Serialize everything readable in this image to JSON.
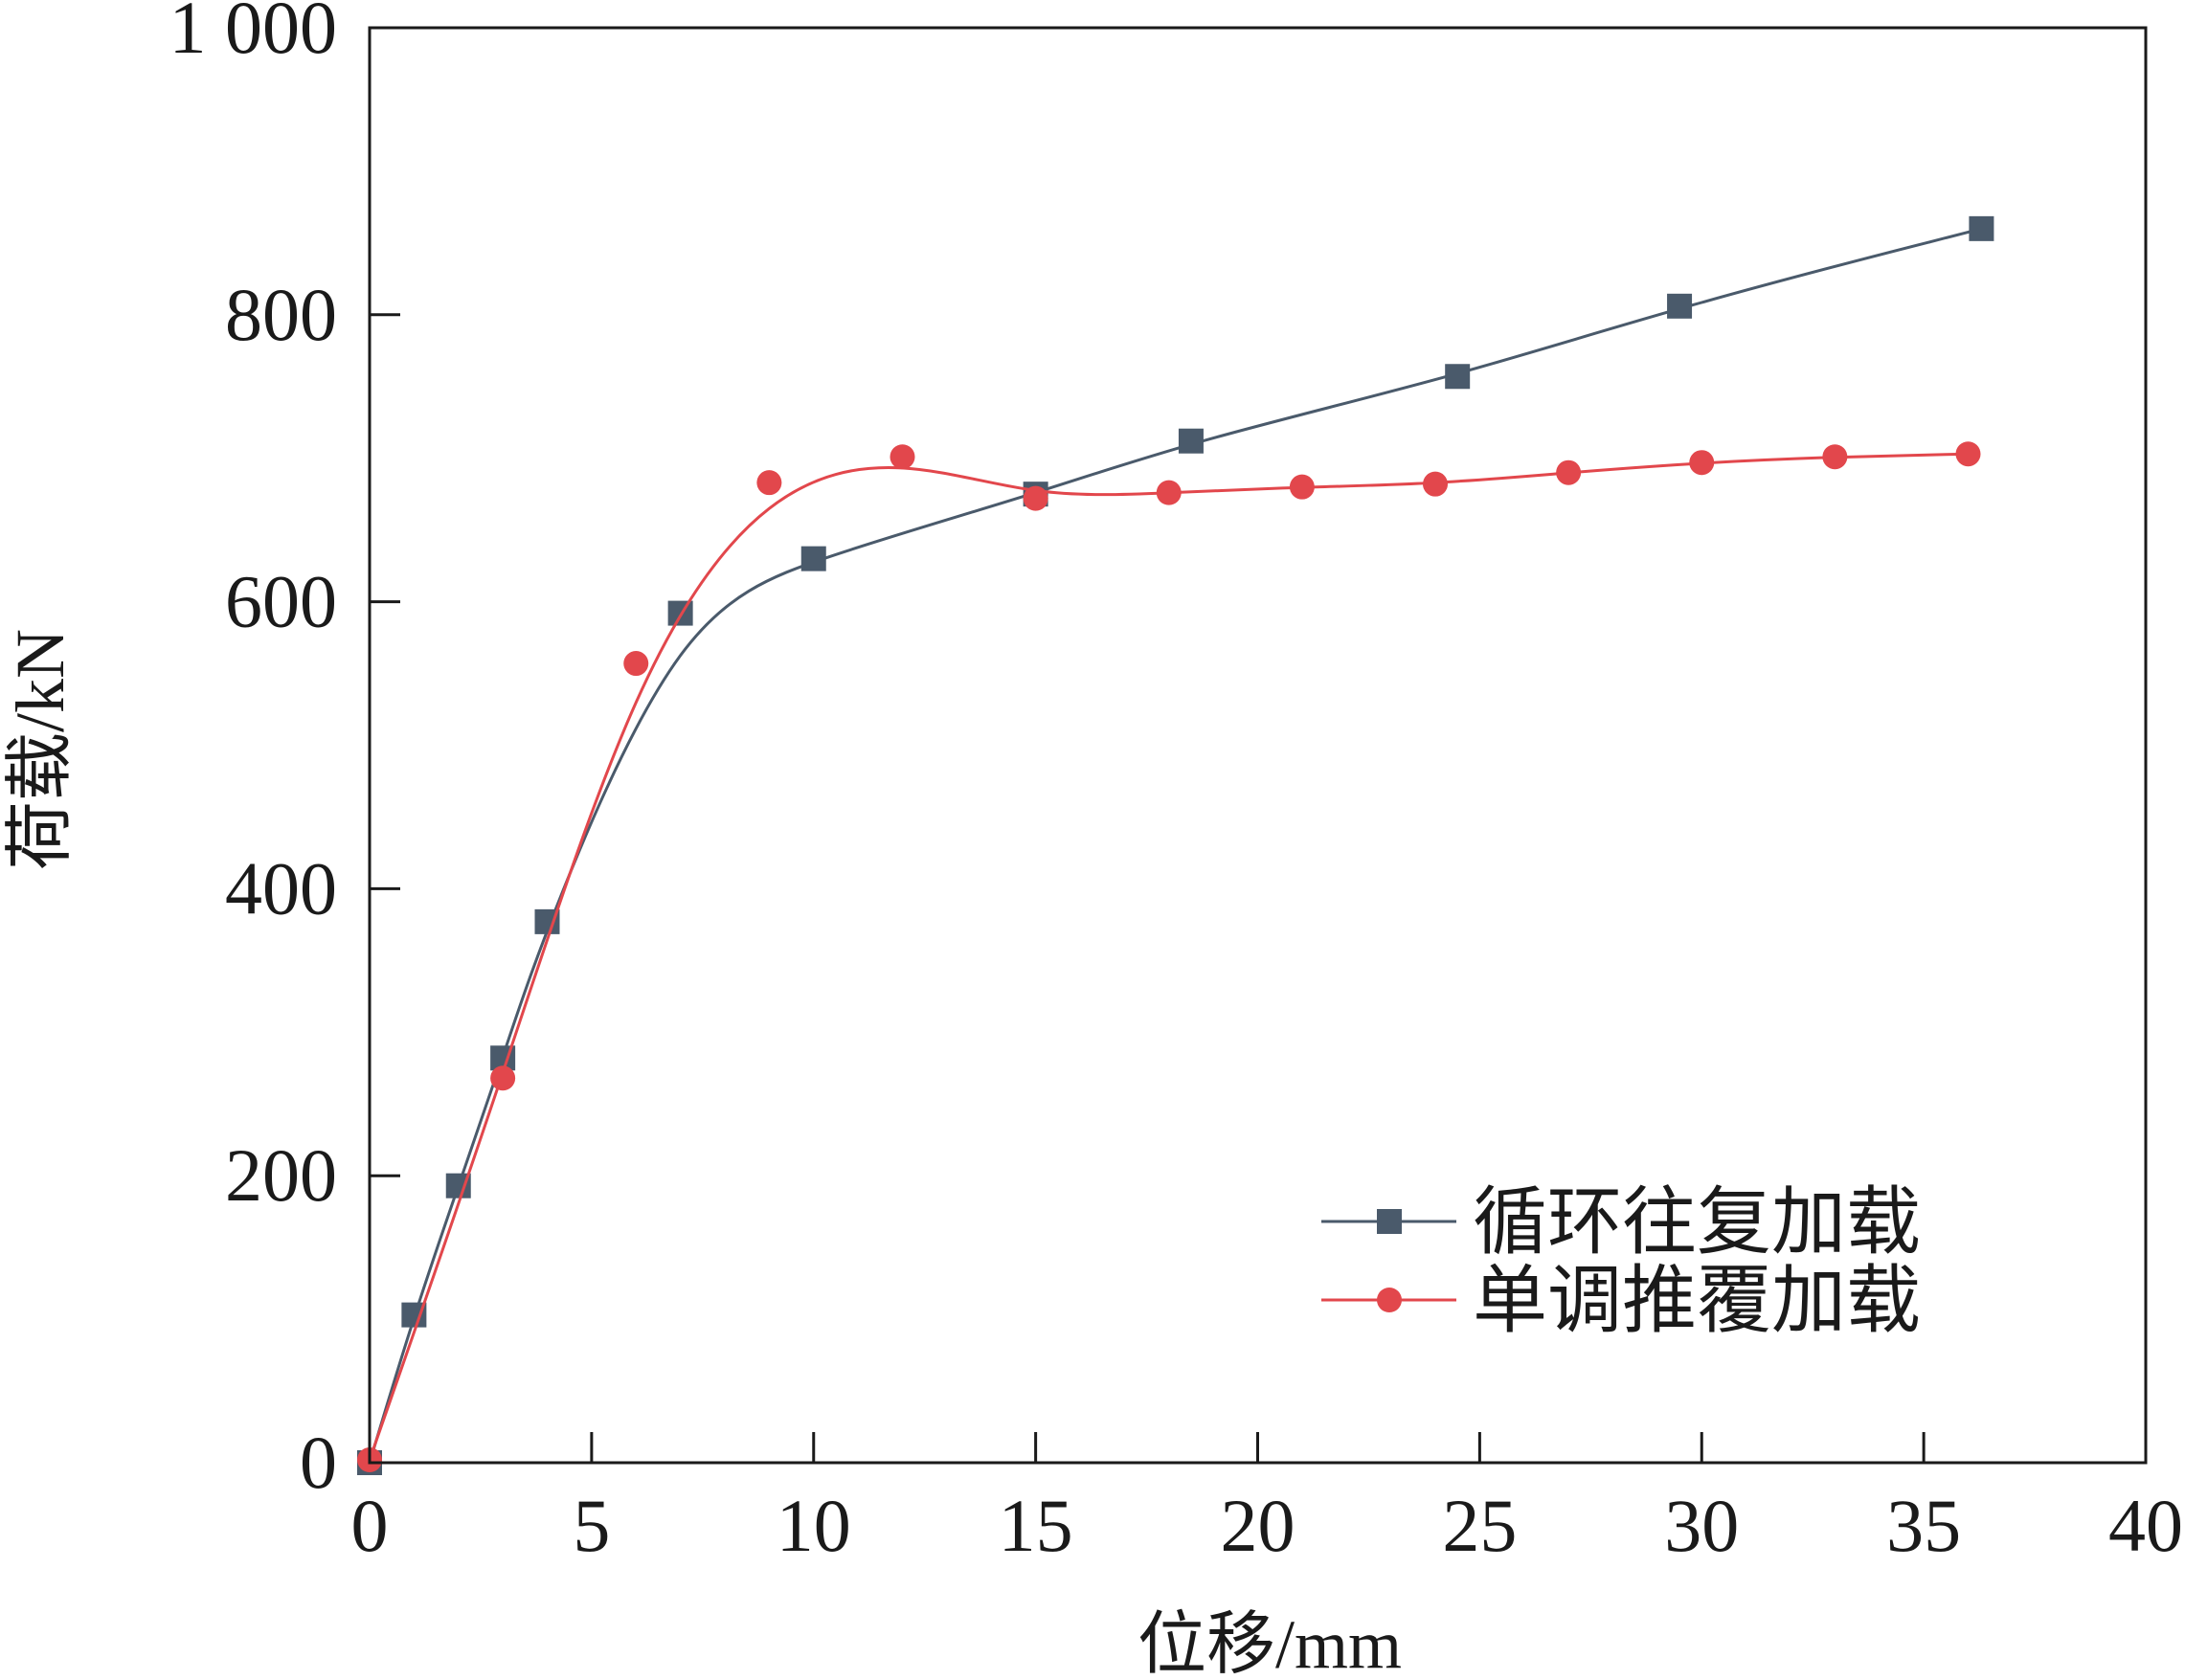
{
  "chart_data": {
    "type": "line",
    "xlabel": "位移/mm",
    "ylabel": "荷载/kN",
    "xlim": [
      0,
      40
    ],
    "ylim": [
      0,
      1000
    ],
    "xticks": [
      0,
      5,
      10,
      15,
      20,
      25,
      30,
      35,
      40
    ],
    "xtick_labels": [
      "0",
      "5",
      "10",
      "15",
      "20",
      "25",
      "30",
      "35",
      "40"
    ],
    "yticks": [
      0,
      200,
      400,
      600,
      800,
      1000
    ],
    "ytick_labels": [
      "0",
      "200",
      "400",
      "600",
      "800",
      "1 000"
    ],
    "grid": false,
    "legend_position": "bottom-right",
    "series": [
      {
        "name": "循环往复加载",
        "marker": "square",
        "color": "#4a5a6b",
        "x": [
          0,
          1,
          2,
          3,
          4,
          7,
          10,
          15,
          18.5,
          24.5,
          29.5,
          36.3
        ],
        "y": [
          0,
          103,
          193,
          282,
          377,
          592,
          630,
          675,
          712,
          757,
          806,
          860
        ]
      },
      {
        "name": "单调推覆加载",
        "marker": "circle",
        "color": "#e2474c",
        "x": [
          0,
          3,
          6,
          9,
          12,
          15,
          18,
          21,
          24,
          27,
          30,
          33,
          36
        ],
        "y": [
          2,
          268,
          557,
          683,
          701,
          672,
          676,
          680,
          682,
          690,
          697,
          701,
          703
        ]
      }
    ]
  }
}
